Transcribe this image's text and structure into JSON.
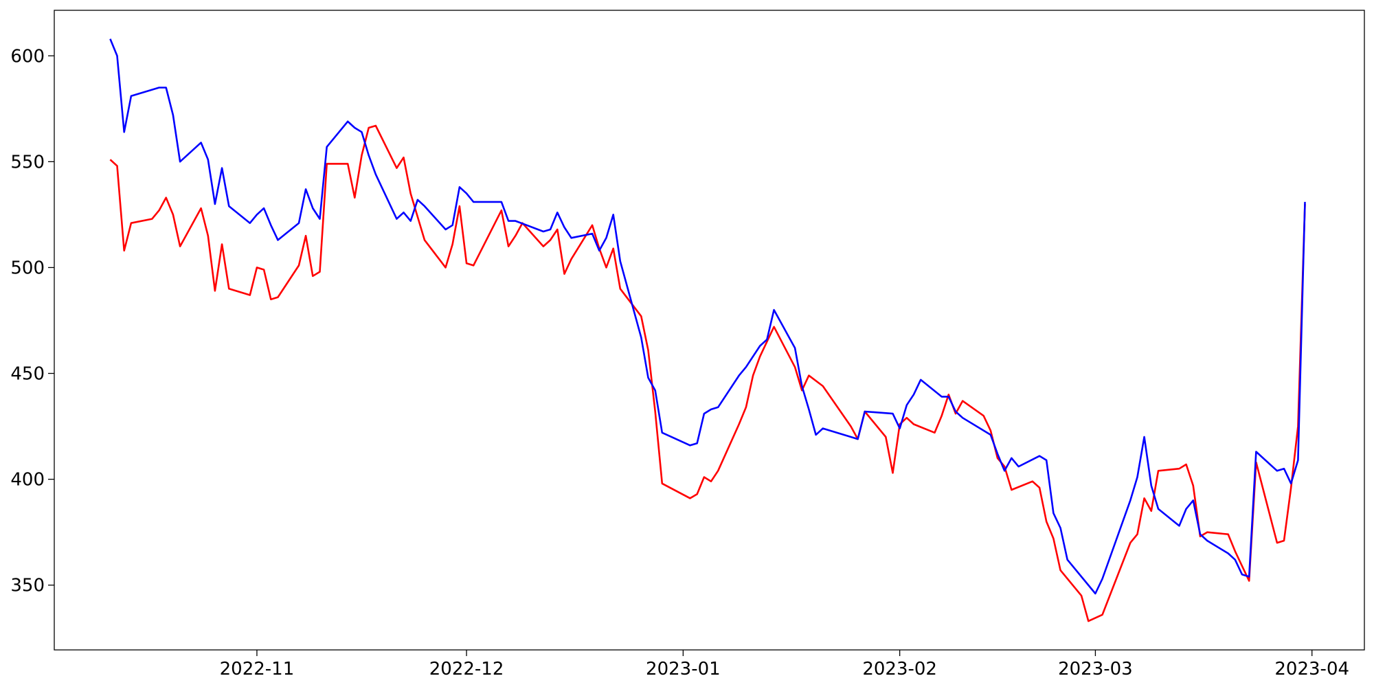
{
  "chart_data": {
    "type": "line",
    "xlim": [
      -29,
      158.5
    ],
    "xticks": [
      {
        "value": 0,
        "label": "2022-11"
      },
      {
        "value": 30,
        "label": "2022-12"
      },
      {
        "value": 61,
        "label": "2023-01"
      },
      {
        "value": 92,
        "label": "2023-02"
      },
      {
        "value": 120,
        "label": "2023-03"
      },
      {
        "value": 151,
        "label": "2023-04"
      }
    ],
    "ylim": [
      319.4,
      621.5
    ],
    "yticks": [
      350,
      400,
      450,
      500,
      550,
      600
    ],
    "grid": false,
    "series": [
      {
        "color": "red",
        "x": [
          -21,
          -20,
          -19,
          -18,
          -15,
          -14,
          -13,
          -12,
          -11,
          -8,
          -7,
          -6,
          -5,
          -4,
          -1,
          0,
          1,
          2,
          3,
          6,
          7,
          8,
          9,
          10,
          13,
          14,
          15,
          16,
          17,
          20,
          21,
          22,
          24,
          27,
          28,
          29,
          30,
          31,
          35,
          36,
          37,
          38,
          41,
          42,
          43,
          44,
          45,
          48,
          49,
          50,
          51,
          52,
          55,
          56,
          57,
          58,
          62,
          63,
          64,
          65,
          66,
          69,
          70,
          71,
          72,
          74,
          77,
          78,
          79,
          81,
          85,
          86,
          87,
          90,
          91,
          92,
          93,
          94,
          97,
          98,
          99,
          100,
          101,
          104,
          105,
          106,
          107,
          108,
          111,
          112,
          113,
          114,
          115,
          118,
          119,
          121,
          125,
          126,
          127,
          128,
          129,
          132,
          133,
          134,
          135,
          136,
          139,
          140,
          142,
          143,
          146,
          147,
          148,
          149,
          150
        ],
        "values": [
          551,
          548,
          508,
          521,
          523,
          527,
          533,
          525,
          510,
          528,
          515,
          489,
          511,
          490,
          487,
          500,
          499,
          485,
          486,
          501,
          515,
          496,
          498,
          549,
          549,
          533,
          553,
          566,
          567,
          547,
          552,
          535,
          513,
          500,
          511,
          529,
          502,
          501,
          527,
          510,
          515,
          521,
          510,
          513,
          518,
          497,
          504,
          520,
          509,
          500,
          509,
          490,
          477,
          461,
          432,
          398,
          391,
          393,
          401,
          399,
          404,
          426,
          434,
          449,
          458,
          472,
          453,
          442,
          449,
          444,
          425,
          419,
          432,
          420,
          403,
          426,
          429,
          426,
          422,
          430,
          440,
          431,
          437,
          430,
          423,
          410,
          406,
          395,
          399,
          396,
          380,
          372,
          357,
          345,
          333,
          336,
          370,
          374,
          391,
          385,
          404,
          405,
          407,
          397,
          373,
          375,
          374,
          366,
          352,
          408,
          370,
          371,
          396,
          425,
          530
        ]
      },
      {
        "color": "blue",
        "x": [
          -21,
          -20,
          -19,
          -18,
          -14,
          -13,
          -12,
          -11,
          -8,
          -7,
          -6,
          -5,
          -4,
          -1,
          0,
          1,
          2,
          3,
          6,
          7,
          8,
          9,
          10,
          13,
          14,
          15,
          16,
          17,
          20,
          21,
          22,
          23,
          24,
          27,
          28,
          29,
          30,
          31,
          35,
          36,
          37,
          41,
          42,
          43,
          44,
          45,
          48,
          49,
          50,
          51,
          52,
          55,
          56,
          57,
          58,
          62,
          63,
          64,
          65,
          66,
          69,
          70,
          72,
          73,
          74,
          77,
          78,
          79,
          80,
          81,
          85,
          86,
          87,
          91,
          92,
          93,
          94,
          95,
          98,
          99,
          100,
          101,
          105,
          106,
          107,
          108,
          109,
          112,
          113,
          114,
          115,
          116,
          120,
          121,
          125,
          126,
          127,
          128,
          129,
          132,
          133,
          134,
          135,
          136,
          139,
          140,
          141,
          142,
          143,
          146,
          147,
          148,
          149,
          150
        ],
        "values": [
          608,
          600,
          564,
          581,
          585,
          585,
          572,
          550,
          559,
          551,
          530,
          547,
          529,
          521,
          525,
          528,
          520,
          513,
          521,
          537,
          528,
          523,
          557,
          569,
          566,
          564,
          553,
          544,
          523,
          526,
          522,
          532,
          529,
          518,
          520,
          538,
          535,
          531,
          531,
          522,
          522,
          517,
          518,
          526,
          519,
          514,
          516,
          508,
          514,
          525,
          503,
          467,
          448,
          442,
          422,
          416,
          417,
          431,
          433,
          434,
          449,
          453,
          463,
          466,
          480,
          462,
          444,
          433,
          421,
          424,
          420,
          419,
          432,
          431,
          424,
          435,
          440,
          447,
          439,
          439,
          432,
          429,
          421,
          412,
          404,
          410,
          406,
          411,
          409,
          384,
          377,
          362,
          346,
          353,
          390,
          401,
          420,
          397,
          386,
          378,
          386,
          390,
          374,
          371,
          365,
          362,
          355,
          354,
          413,
          404,
          405,
          398,
          409,
          531
        ]
      }
    ]
  }
}
